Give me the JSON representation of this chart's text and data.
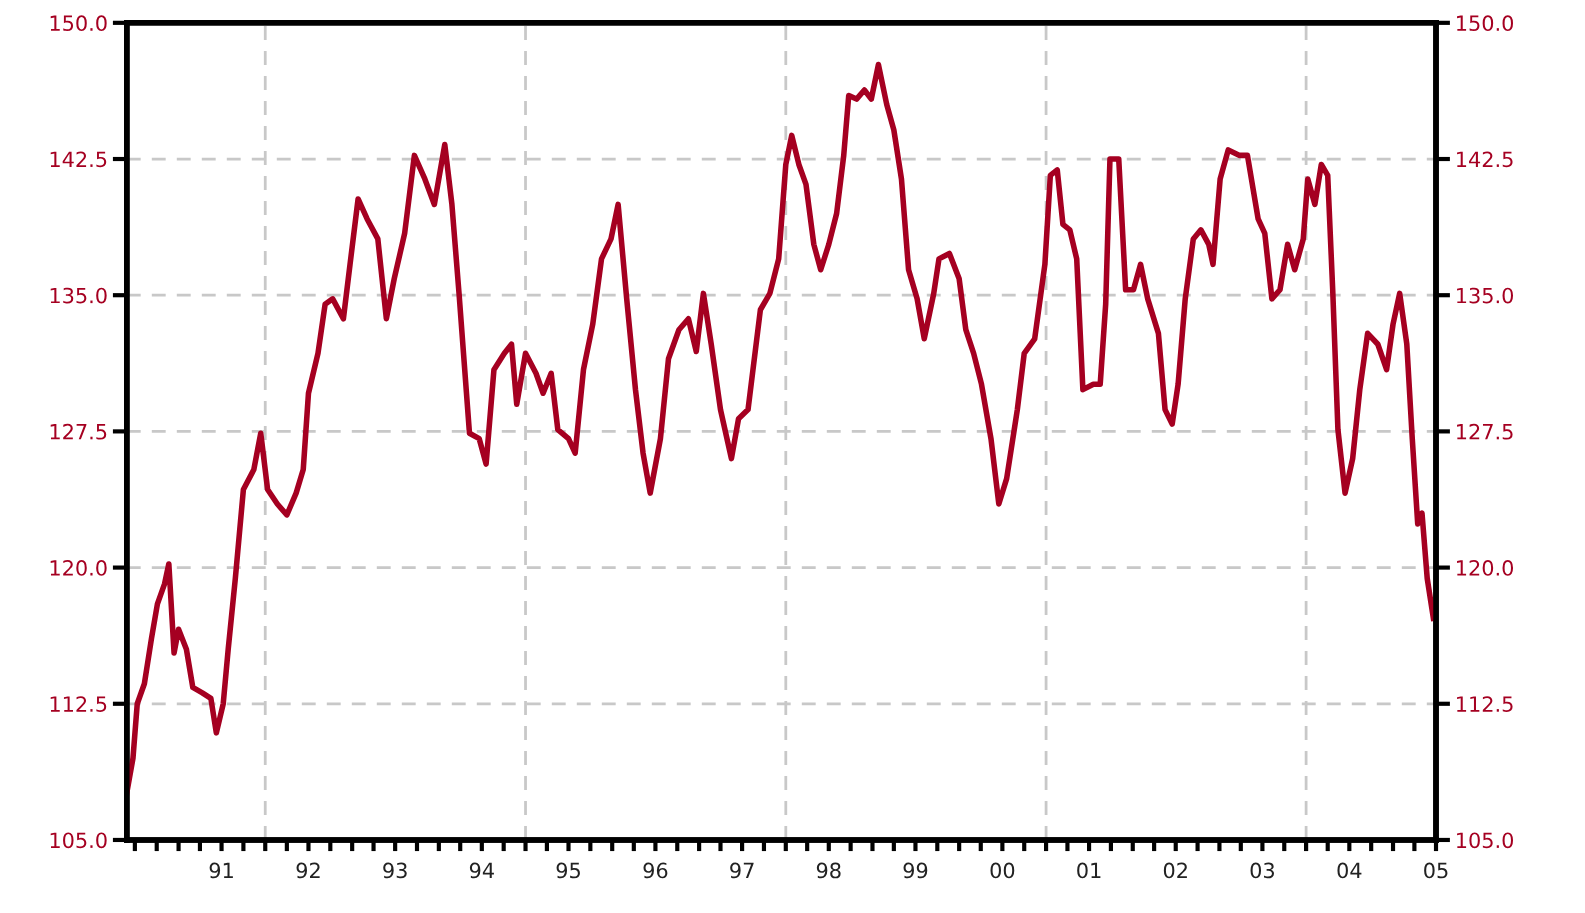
{
  "chart_data": {
    "type": "line",
    "x": [
      "1990-05-28",
      "1990-06-23",
      "1990-07-11",
      "1990-08-10",
      "1990-09-09",
      "1990-10-04",
      "1990-11-03",
      "1990-11-21",
      "1990-12-13",
      "1991-01-01",
      "1991-02-03",
      "1991-03-02",
      "1991-04-11",
      "1991-05-17",
      "1991-06-09",
      "1991-07-08",
      "1991-07-29",
      "1991-08-28",
      "1991-10-01",
      "1991-11-14",
      "1991-12-13",
      "1992-01-11",
      "1992-02-21",
      "1992-04-01",
      "1992-05-10",
      "1992-06-09",
      "1992-07-01",
      "1992-08-10",
      "1992-09-09",
      "1992-10-11",
      "1992-11-25",
      "1992-12-23",
      "1993-01-26",
      "1993-03-05",
      "1993-04-19",
      "1993-05-25",
      "1993-06-27",
      "1993-08-10",
      "1993-09-20",
      "1993-11-03",
      "1993-12-13",
      "1994-01-26",
      "1994-02-25",
      "1994-03-27",
      "1994-05-10",
      "1994-06-20",
      "1994-07-19",
      "1994-08-21",
      "1994-10-04",
      "1994-11-03",
      "1994-11-25",
      "1995-01-01",
      "1995-02-14",
      "1995-03-16",
      "1995-04-19",
      "1995-05-17",
      "1995-07-01",
      "1995-07-29",
      "1995-09-02",
      "1995-10-11",
      "1995-11-17",
      "1995-12-27",
      "1996-01-26",
      "1996-03-02",
      "1996-04-08",
      "1996-05-10",
      "1996-06-09",
      "1996-07-22",
      "1996-08-25",
      "1996-10-08",
      "1996-11-17",
      "1996-12-20",
      "1997-01-19",
      "1997-02-21",
      "1997-04-01",
      "1997-05-17",
      "1997-06-16",
      "1997-07-26",
      "1997-09-16",
      "1997-10-26",
      "1997-12-02",
      "1998-01-01",
      "1998-01-26",
      "1998-02-25",
      "1998-03-27",
      "1998-04-29",
      "1998-05-28",
      "1998-07-01",
      "1998-08-03",
      "1998-09-02",
      "1998-09-23",
      "1998-10-26",
      "1998-11-28",
      "1998-12-27",
      "1999-01-26",
      "1999-03-02",
      "1999-04-01",
      "1999-05-03",
      "1999-06-02",
      "1999-07-08",
      "1999-08-07",
      "1999-09-16",
      "1999-10-08",
      "1999-11-21",
      "2000-01-01",
      "2000-01-29",
      "2000-03-02",
      "2000-04-04",
      "2000-05-14",
      "2000-06-16",
      "2000-07-19",
      "2000-09-02",
      "2000-10-01",
      "2000-11-14",
      "2000-12-27",
      "2001-01-19",
      "2001-02-17",
      "2001-03-13",
      "2001-04-11",
      "2001-05-10",
      "2001-06-05",
      "2001-07-19",
      "2001-08-17",
      "2001-09-09",
      "2001-09-27",
      "2001-11-03",
      "2001-12-02",
      "2002-01-04",
      "2002-02-03",
      "2002-03-05",
      "2002-04-19",
      "2002-05-17",
      "2002-06-16",
      "2002-07-11",
      "2002-08-10",
      "2002-09-13",
      "2002-10-15",
      "2002-11-17",
      "2002-12-05",
      "2003-01-04",
      "2003-02-07",
      "2003-03-27",
      "2003-04-29",
      "2003-06-13",
      "2003-07-11",
      "2003-08-10",
      "2003-09-13",
      "2003-10-15",
      "2003-11-14",
      "2003-12-20",
      "2004-01-08",
      "2004-02-07",
      "2004-03-05",
      "2004-04-01",
      "2004-04-22",
      "2004-05-14",
      "2004-06-13",
      "2004-07-15",
      "2004-08-14",
      "2004-09-16",
      "2004-10-29",
      "2004-12-05",
      "2005-01-01",
      "2005-01-29",
      "2005-02-28",
      "2005-03-23",
      "2005-04-15",
      "2005-05-03",
      "2005-05-25",
      "2005-06-20"
    ],
    "series": [
      {
        "color": "#a50021",
        "values": [
          107.6,
          109.5,
          112.5,
          113.6,
          116.1,
          118.0,
          119.1,
          120.2,
          115.3,
          116.6,
          115.5,
          113.4,
          113.1,
          112.8,
          110.9,
          112.5,
          115.5,
          119.4,
          124.3,
          125.4,
          127.4,
          124.3,
          123.5,
          122.9,
          124.1,
          125.4,
          129.6,
          131.8,
          134.5,
          134.8,
          133.7,
          136.7,
          140.3,
          139.2,
          138.1,
          133.7,
          135.9,
          138.4,
          142.7,
          141.4,
          140.0,
          143.3,
          140.0,
          135.1,
          127.4,
          127.1,
          125.7,
          130.9,
          131.8,
          132.3,
          129.0,
          131.8,
          130.7,
          129.6,
          130.7,
          127.6,
          127.1,
          126.3,
          130.9,
          133.4,
          137.0,
          138.1,
          140.0,
          134.8,
          129.8,
          126.3,
          124.1,
          127.1,
          131.5,
          133.1,
          133.7,
          131.9,
          135.1,
          132.3,
          128.7,
          126.0,
          128.2,
          128.7,
          134.2,
          135.1,
          137.0,
          142.2,
          143.8,
          142.2,
          141.1,
          137.8,
          136.4,
          137.8,
          139.5,
          142.7,
          146.0,
          145.8,
          146.3,
          145.8,
          147.7,
          145.5,
          144.1,
          141.4,
          136.4,
          134.8,
          132.6,
          135.1,
          137.0,
          137.3,
          135.9,
          133.1,
          131.8,
          130.1,
          127.1,
          123.5,
          124.9,
          128.7,
          131.8,
          132.6,
          136.7,
          141.6,
          141.9,
          138.9,
          138.6,
          137.0,
          129.8,
          130.1,
          130.1,
          134.5,
          142.5,
          142.5,
          135.3,
          135.3,
          136.7,
          134.8,
          132.9,
          128.7,
          127.9,
          130.1,
          134.8,
          138.1,
          138.6,
          137.8,
          136.7,
          141.4,
          143.0,
          142.7,
          142.7,
          139.2,
          138.4,
          134.8,
          135.3,
          137.8,
          136.4,
          138.1,
          141.4,
          140.0,
          142.2,
          141.6,
          135.3,
          127.6,
          124.1,
          126.0,
          129.8,
          132.9,
          132.3,
          130.9,
          133.4,
          135.1,
          132.3,
          127.1,
          122.4,
          123.0,
          119.4,
          117.2
        ]
      }
    ],
    "xlim": [
      "1990-05-28",
      "2005-07-01"
    ],
    "xticks": [
      {
        "value": "1990-07-01",
        "label": null
      },
      {
        "value": "1990-10-01",
        "label": null
      },
      {
        "value": "1991-01-01",
        "label": null
      },
      {
        "value": "1991-04-01",
        "label": null
      },
      {
        "value": "1991-07-01",
        "label": "91"
      },
      {
        "value": "1991-10-01",
        "label": null
      },
      {
        "value": "1992-01-01",
        "label": null
      },
      {
        "value": "1992-04-01",
        "label": null
      },
      {
        "value": "1992-07-01",
        "label": "92"
      },
      {
        "value": "1992-10-01",
        "label": null
      },
      {
        "value": "1993-01-01",
        "label": null
      },
      {
        "value": "1993-04-01",
        "label": null
      },
      {
        "value": "1993-07-01",
        "label": "93"
      },
      {
        "value": "1993-10-01",
        "label": null
      },
      {
        "value": "1994-01-01",
        "label": null
      },
      {
        "value": "1994-04-01",
        "label": null
      },
      {
        "value": "1994-07-01",
        "label": "94"
      },
      {
        "value": "1994-10-01",
        "label": null
      },
      {
        "value": "1995-01-01",
        "label": null
      },
      {
        "value": "1995-04-01",
        "label": null
      },
      {
        "value": "1995-07-01",
        "label": "95"
      },
      {
        "value": "1995-10-01",
        "label": null
      },
      {
        "value": "1996-01-01",
        "label": null
      },
      {
        "value": "1996-04-01",
        "label": null
      },
      {
        "value": "1996-07-01",
        "label": "96"
      },
      {
        "value": "1996-10-01",
        "label": null
      },
      {
        "value": "1997-01-01",
        "label": null
      },
      {
        "value": "1997-04-01",
        "label": null
      },
      {
        "value": "1997-07-01",
        "label": "97"
      },
      {
        "value": "1997-10-01",
        "label": null
      },
      {
        "value": "1998-01-01",
        "label": null
      },
      {
        "value": "1998-04-01",
        "label": null
      },
      {
        "value": "1998-07-01",
        "label": "98"
      },
      {
        "value": "1998-10-01",
        "label": null
      },
      {
        "value": "1999-01-01",
        "label": null
      },
      {
        "value": "1999-04-01",
        "label": null
      },
      {
        "value": "1999-07-01",
        "label": "99"
      },
      {
        "value": "1999-10-01",
        "label": null
      },
      {
        "value": "2000-01-01",
        "label": null
      },
      {
        "value": "2000-04-01",
        "label": null
      },
      {
        "value": "2000-07-01",
        "label": "00"
      },
      {
        "value": "2000-10-01",
        "label": null
      },
      {
        "value": "2001-01-01",
        "label": null
      },
      {
        "value": "2001-04-01",
        "label": null
      },
      {
        "value": "2001-07-01",
        "label": "01"
      },
      {
        "value": "2001-10-01",
        "label": null
      },
      {
        "value": "2002-01-01",
        "label": null
      },
      {
        "value": "2002-04-01",
        "label": null
      },
      {
        "value": "2002-07-01",
        "label": "02"
      },
      {
        "value": "2002-10-01",
        "label": null
      },
      {
        "value": "2003-01-01",
        "label": null
      },
      {
        "value": "2003-04-01",
        "label": null
      },
      {
        "value": "2003-07-01",
        "label": "03"
      },
      {
        "value": "2003-10-01",
        "label": null
      },
      {
        "value": "2004-01-01",
        "label": null
      },
      {
        "value": "2004-04-01",
        "label": null
      },
      {
        "value": "2004-07-01",
        "label": "04"
      },
      {
        "value": "2004-10-01",
        "label": null
      },
      {
        "value": "2005-01-01",
        "label": null
      },
      {
        "value": "2005-04-01",
        "label": null
      },
      {
        "value": "2005-07-01",
        "label": "05"
      }
    ],
    "ylim": [
      105,
      150
    ],
    "yticks": [
      {
        "value": 105,
        "label": "105.0"
      },
      {
        "value": 112.5,
        "label": "112.5"
      },
      {
        "value": 120,
        "label": "120.0"
      },
      {
        "value": 127.5,
        "label": "127.5"
      },
      {
        "value": 135,
        "label": "135.0"
      },
      {
        "value": 142.5,
        "label": "142.5"
      },
      {
        "value": 150,
        "label": "150.0"
      }
    ],
    "y2lim": [
      105,
      150
    ],
    "y2ticks": [
      {
        "value": 105,
        "label": "105.0"
      },
      {
        "value": 112.5,
        "label": "112.5"
      },
      {
        "value": 120,
        "label": "120.0"
      },
      {
        "value": 127.5,
        "label": "127.5"
      },
      {
        "value": 135,
        "label": "135.0"
      },
      {
        "value": 142.5,
        "label": "142.5"
      },
      {
        "value": 150,
        "label": "150.0"
      }
    ],
    "grid": "y",
    "ref_lines": [
      {
        "axis": "x",
        "value": "1992-01-01",
        "color": "#c8c8c8",
        "line_style": "dashed"
      },
      {
        "axis": "x",
        "value": "1995-01-01",
        "color": "#c8c8c8",
        "line_style": "dashed"
      },
      {
        "axis": "x",
        "value": "1998-01-01",
        "color": "#c8c8c8",
        "line_style": "dashed"
      },
      {
        "axis": "x",
        "value": "2001-01-01",
        "color": "#c8c8c8",
        "line_style": "dashed"
      },
      {
        "axis": "x",
        "value": "2004-01-01",
        "color": "#c8c8c8",
        "line_style": "dashed"
      }
    ]
  }
}
